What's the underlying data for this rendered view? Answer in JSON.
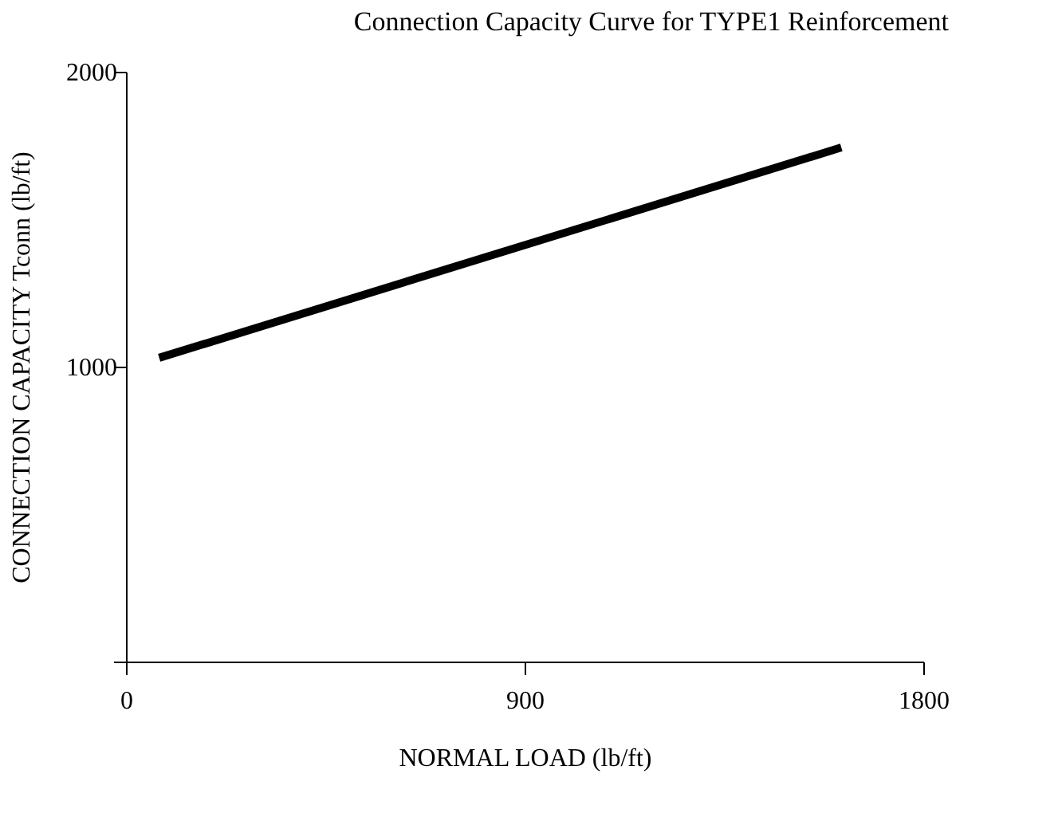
{
  "chart_data": {
    "type": "line",
    "title": "Connection Capacity Curve for TYPE1 Reinforcement",
    "xlabel": "NORMAL LOAD (lb/ft)",
    "ylabel": "CONNECTION CAPACITY Tconn  (lb/ft)",
    "x": [
      75,
      1615
    ],
    "series": [
      {
        "color": "#000000",
        "values": [
          1030,
          1743
        ]
      }
    ],
    "xlim": [
      0,
      1800
    ],
    "xticks": [
      0,
      900,
      1800
    ],
    "ylim": [
      0,
      2000
    ],
    "yticks": [
      {
        "value": 0,
        "label": null
      },
      1000,
      2000
    ],
    "grid": false,
    "legend": false,
    "marker": "none",
    "line_style": "solid"
  }
}
